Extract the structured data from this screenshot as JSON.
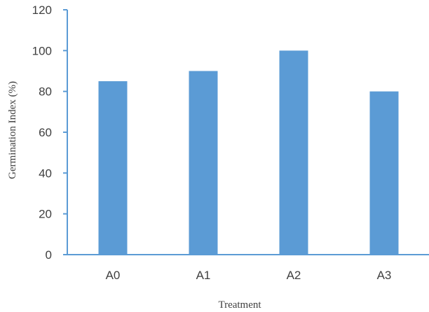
{
  "chart_data": {
    "type": "bar",
    "categories": [
      "A0",
      "A1",
      "A2",
      "A3"
    ],
    "values": [
      85,
      90,
      100,
      80
    ],
    "xlabel": "Treatment",
    "ylabel": "Germination Index (%)",
    "ylim": [
      0,
      120
    ],
    "yticks": [
      0,
      20,
      40,
      60,
      80,
      100,
      120
    ],
    "grid": false,
    "legend": "none",
    "colors": {
      "bar": "#5b9bd5",
      "axis": "#5b9bd5",
      "text": "#404040"
    }
  }
}
